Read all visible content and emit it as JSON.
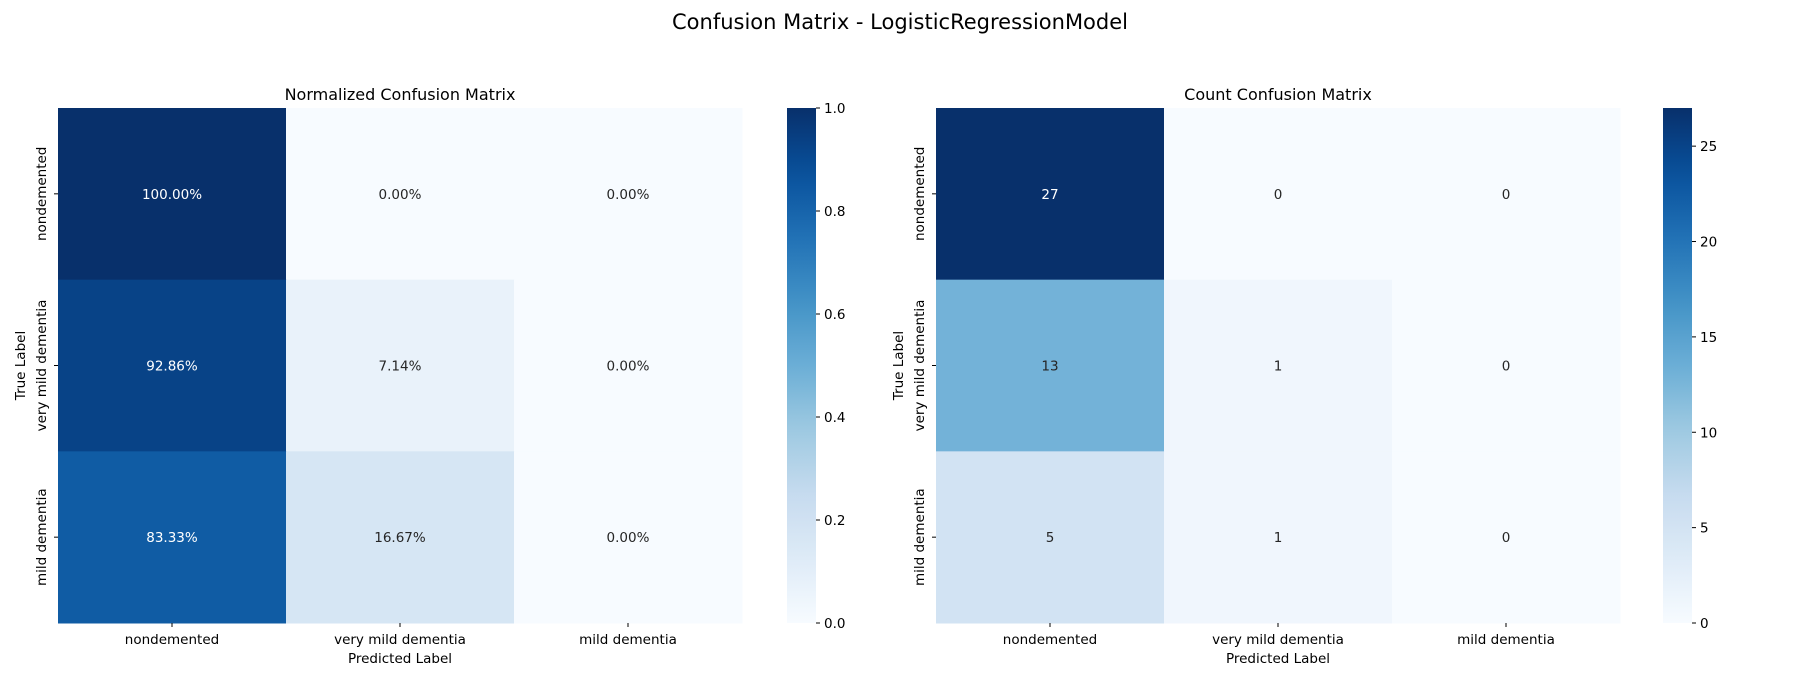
{
  "suptitle": "Confusion Matrix - LogisticRegressionModel",
  "chart_data": [
    {
      "type": "heatmap",
      "title": "Normalized Confusion Matrix",
      "xlabel": "Predicted Label",
      "ylabel": "True Label",
      "x_categories": [
        "nondemented",
        "very mild dementia",
        "mild dementia"
      ],
      "y_categories": [
        "nondemented",
        "very mild dementia",
        "mild dementia"
      ],
      "values": [
        [
          1.0,
          0.0,
          0.0
        ],
        [
          0.9286,
          0.0714,
          0.0
        ],
        [
          0.8333,
          0.1667,
          0.0
        ]
      ],
      "annotations": [
        [
          "100.00%",
          "0.00%",
          "0.00%"
        ],
        [
          "92.86%",
          "7.14%",
          "0.00%"
        ],
        [
          "83.33%",
          "16.67%",
          "0.00%"
        ]
      ],
      "colorbar_range": [
        0,
        1
      ],
      "colorbar_ticks": [
        "0.0",
        "0.2",
        "0.4",
        "0.6",
        "0.8",
        "1.0"
      ],
      "colorbar_tick_values": [
        0,
        0.2,
        0.4,
        0.6,
        0.8,
        1.0
      ],
      "colormap": "Blues"
    },
    {
      "type": "heatmap",
      "title": "Count Confusion Matrix",
      "xlabel": "Predicted Label",
      "ylabel": "True Label",
      "x_categories": [
        "nondemented",
        "very mild dementia",
        "mild dementia"
      ],
      "y_categories": [
        "nondemented",
        "very mild dementia",
        "mild dementia"
      ],
      "values": [
        [
          27,
          0,
          0
        ],
        [
          13,
          1,
          0
        ],
        [
          5,
          1,
          0
        ]
      ],
      "annotations": [
        [
          "27",
          "0",
          "0"
        ],
        [
          "13",
          "1",
          "0"
        ],
        [
          "5",
          "1",
          "0"
        ]
      ],
      "colorbar_range": [
        0,
        27
      ],
      "colorbar_ticks": [
        "0",
        "5",
        "10",
        "15",
        "20",
        "25"
      ],
      "colorbar_tick_values": [
        0,
        5,
        10,
        15,
        20,
        25
      ],
      "colormap": "Blues"
    }
  ]
}
